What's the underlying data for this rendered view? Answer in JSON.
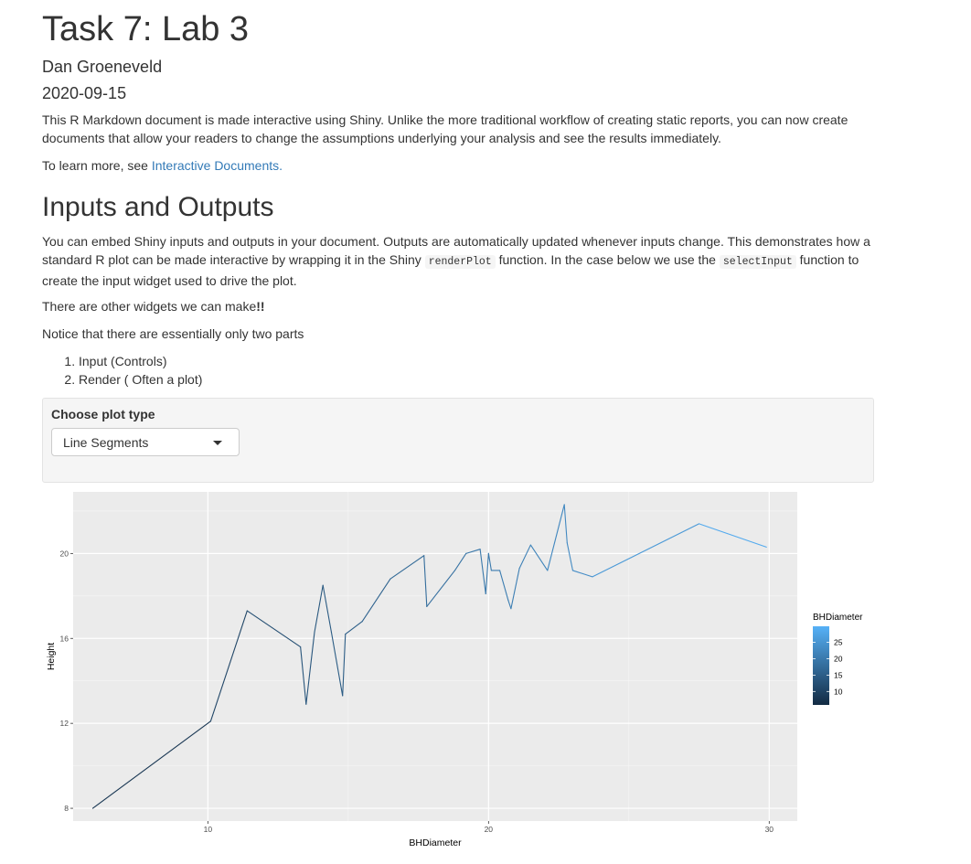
{
  "document": {
    "title": "Task 7: Lab 3",
    "author": "Dan Groeneveld",
    "date": "2020-09-15",
    "intro": "This R Markdown document is made interactive using Shiny. Unlike the more traditional workflow of creating static reports, you can now create documents that allow your readers to change the assumptions underlying your analysis and see the results immediately.",
    "learn_more_prefix": "To learn more, see ",
    "learn_more_link": "Interactive Documents",
    "learn_more_suffix": "."
  },
  "section": {
    "heading": "Inputs and Outputs",
    "para1_a": "You can embed Shiny inputs and outputs in your document. Outputs are automatically updated whenever inputs change. This demonstrates how a standard R plot can be made interactive by wrapping it in the Shiny ",
    "code1": "renderPlot",
    "para1_b": " function. In the case below we use the ",
    "code2": "selectInput",
    "para1_c": " function to create the input widget used to drive the plot.",
    "para2_a": "There are other widgets we can make",
    "para2_b": "!!",
    "para3": "Notice that there are essentially only two parts",
    "list": [
      "Input (Controls)",
      "Render ( Often a plot)"
    ]
  },
  "controls": {
    "label": "Choose plot type",
    "selected": "Line Segments"
  },
  "colors": {
    "link": "#337ab7",
    "panel_bg": "#ebebeb",
    "low": "#132B43",
    "high": "#56B1F7"
  },
  "chart_data": {
    "type": "line",
    "xlabel": "BHDiameter",
    "ylabel": "Height",
    "xlim": [
      5.2,
      31
    ],
    "ylim": [
      7.4,
      22.9
    ],
    "x_ticks": [
      10,
      20,
      30
    ],
    "y_ticks": [
      8,
      12,
      16,
      20
    ],
    "x_tick_labels": [
      "10",
      "20",
      "30"
    ],
    "y_tick_labels": [
      "8",
      "12",
      "16",
      "20"
    ],
    "grid": true,
    "legend_title": "BHDiameter",
    "legend_ticks": [
      10,
      15,
      20,
      25
    ],
    "legend_tick_labels": [
      "10",
      "15",
      "20",
      "25"
    ],
    "legend_placement": "right",
    "color_range": [
      5.9,
      29.9
    ],
    "x": [
      5.9,
      10.1,
      11.4,
      13.3,
      13.5,
      13.8,
      14.1,
      14.4,
      14.8,
      14.9,
      15.5,
      16.5,
      17.7,
      17.8,
      18.8,
      19.2,
      19.7,
      19.9,
      20.0,
      20.1,
      20.4,
      20.7,
      20.8,
      21.1,
      21.5,
      22.1,
      22.7,
      22.8,
      23.0,
      23.7,
      27.5,
      29.9
    ],
    "y": [
      8.0,
      12.1,
      17.3,
      15.6,
      12.9,
      16.3,
      18.5,
      16.3,
      13.3,
      16.2,
      16.8,
      18.8,
      19.9,
      17.5,
      19.2,
      20.0,
      20.2,
      18.1,
      20.0,
      19.2,
      19.2,
      17.8,
      17.4,
      19.3,
      20.4,
      19.2,
      22.3,
      20.5,
      19.2,
      18.9,
      21.4,
      20.3
    ]
  }
}
